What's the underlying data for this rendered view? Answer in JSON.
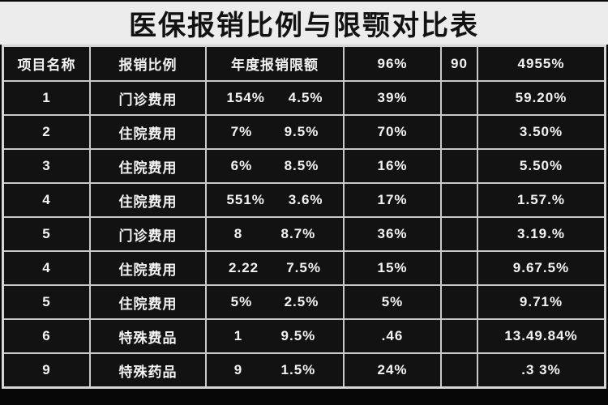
{
  "title": "医保报销比例与限颚对比表",
  "colors": {
    "page_bg": "#060606",
    "title_band_bg": "#ececec",
    "title_text": "#121212",
    "cell_bg": "#121212",
    "cell_text": "#f3f3f3",
    "grid_line": "#c9c9c9"
  },
  "chart_data": {
    "type": "table",
    "title": "医保报销比例与限颚对比表",
    "columns": [
      "项目名称",
      "报销比例",
      "年度报销限额",
      "96%",
      "90",
      "4955%"
    ],
    "rows": [
      {
        "no": "1",
        "category": "门诊费用",
        "limit1": "154%",
        "limit2": "4.5%",
        "rate": "39%",
        "blank": "",
        "total": "59.20%"
      },
      {
        "no": "2",
        "category": "住院费用",
        "limit1": "7%",
        "limit2": "9.5%",
        "rate": "70%",
        "blank": "",
        "total": "3.50%"
      },
      {
        "no": "3",
        "category": "住院费用",
        "limit1": "6%",
        "limit2": "8.5%",
        "rate": "16%",
        "blank": "",
        "total": "5.50%"
      },
      {
        "no": "4",
        "category": "住院费用",
        "limit1": "551%",
        "limit2": "3.6%",
        "rate": "17%",
        "blank": "",
        "total": "1.57.%"
      },
      {
        "no": "5",
        "category": "门诊费用",
        "limit1": "8",
        "limit2": "8.7%",
        "rate": "36%",
        "blank": "",
        "total": "3.19.%"
      },
      {
        "no": "4",
        "category": "住院费用",
        "limit1": "2.22",
        "limit2": "7.5%",
        "rate": "15%",
        "blank": "",
        "total": "9.67.5%"
      },
      {
        "no": "5",
        "category": "住院费用",
        "limit1": "5%",
        "limit2": "2.5%",
        "rate": "5%",
        "blank": "",
        "total": "9.71%"
      },
      {
        "no": "6",
        "category": "特殊费品",
        "limit1": "1",
        "limit2": "9.5%",
        "rate": ".46",
        "blank": "",
        "total": "13.49.84%"
      },
      {
        "no": "9",
        "category": "特殊药品",
        "limit1": "9",
        "limit2": "1.5%",
        "rate": "24%",
        "blank": "",
        "total": ".3 3%"
      }
    ]
  }
}
